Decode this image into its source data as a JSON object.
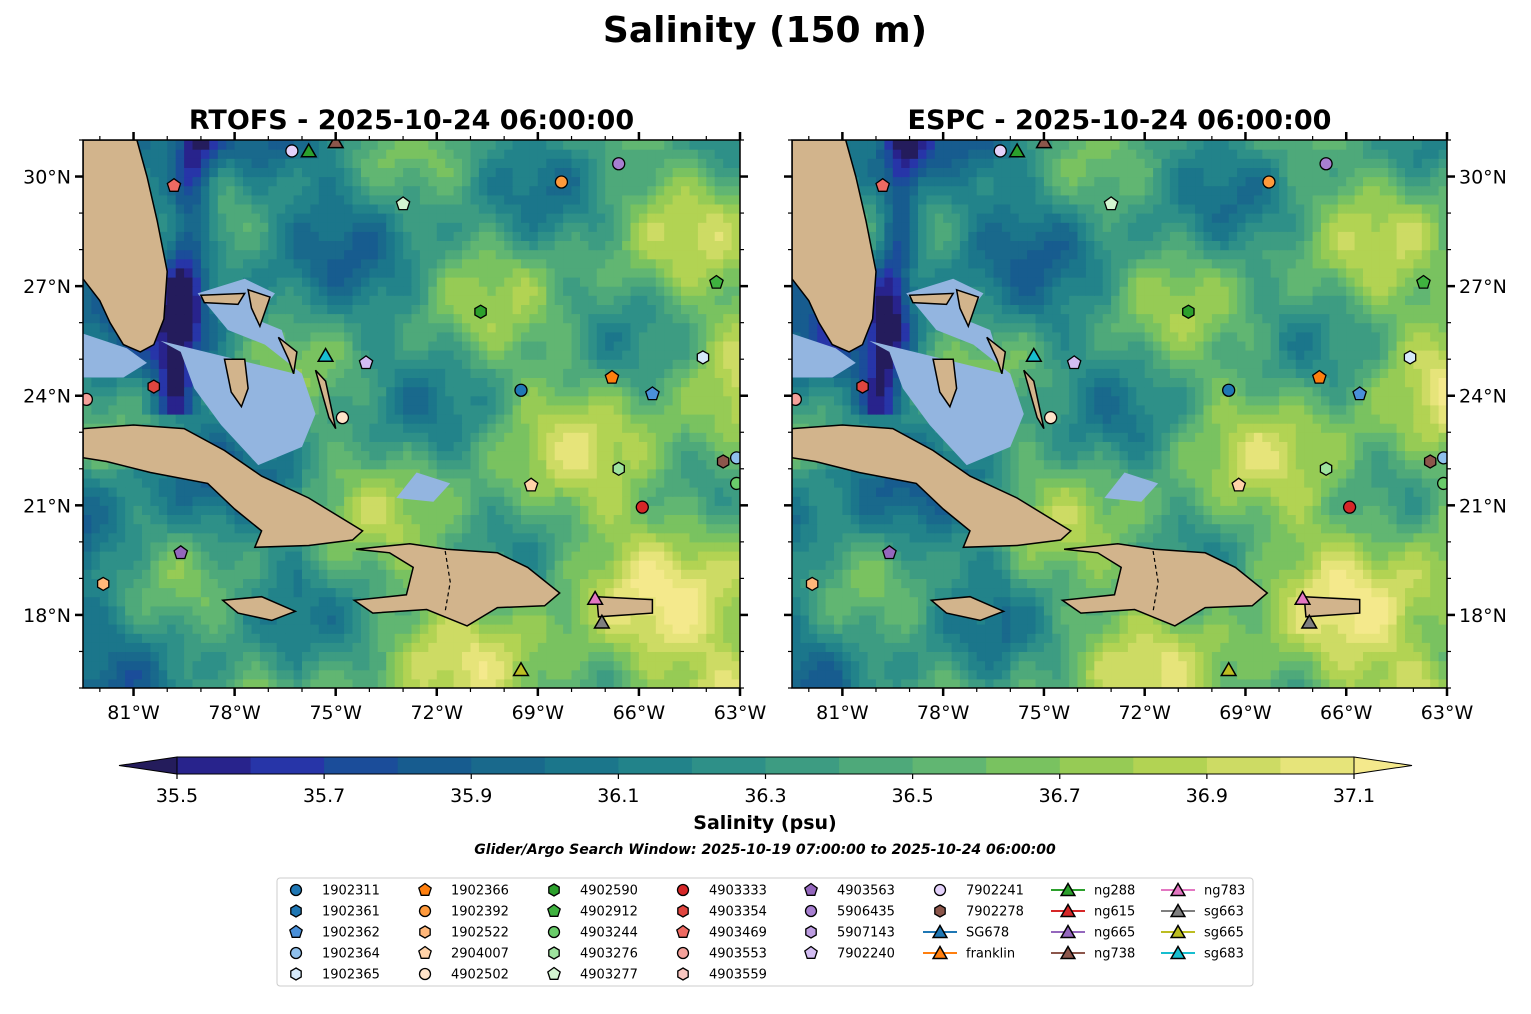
{
  "figure_title": "Salinity (150 m)",
  "colors": {
    "land": "#d2b48c",
    "shallow": "#93b5e0",
    "coast": "#000000",
    "colormap": [
      "#241c5c",
      "#28238c",
      "#2735a8",
      "#1b4d9a",
      "#175c8f",
      "#19698c",
      "#1b768b",
      "#22838a",
      "#2e9088",
      "#3d9c82",
      "#4ea97a",
      "#61b672",
      "#79c260",
      "#96cb55",
      "#b2d353",
      "#cddb64",
      "#e6e47a",
      "#f4e98c"
    ]
  },
  "chart_data": [
    {
      "type": "map",
      "title": "RTOFS - 2025-10-24 06:00:00",
      "lon_range": [
        -82.5,
        -63
      ],
      "lat_range": [
        16,
        31
      ],
      "x_ticks": [
        "81°W",
        "78°W",
        "75°W",
        "72°W",
        "69°W",
        "66°W",
        "63°W"
      ],
      "x_tick_values": [
        -81,
        -78,
        -75,
        -72,
        -69,
        -66,
        -63
      ],
      "y_ticks": [
        "18°N",
        "21°N",
        "24°N",
        "27°N",
        "30°N"
      ],
      "y_tick_values": [
        18,
        21,
        24,
        27,
        30
      ],
      "y_tick_side": "left"
    },
    {
      "type": "map",
      "title": "ESPC - 2025-10-24 06:00:00",
      "lon_range": [
        -82.5,
        -63
      ],
      "lat_range": [
        16,
        31
      ],
      "x_ticks": [
        "81°W",
        "78°W",
        "75°W",
        "72°W",
        "69°W",
        "66°W",
        "63°W"
      ],
      "x_tick_values": [
        -81,
        -78,
        -75,
        -72,
        -69,
        -66,
        -63
      ],
      "y_ticks": [
        "18°N",
        "21°N",
        "24°N",
        "27°N",
        "30°N"
      ],
      "y_tick_values": [
        18,
        21,
        24,
        27,
        30
      ],
      "y_tick_side": "right"
    }
  ],
  "colorbar": {
    "min": 35.5,
    "max": 37.1,
    "step": 0.1,
    "tick_labels": [
      "35.5",
      "35.7",
      "35.9",
      "36.1",
      "36.3",
      "36.5",
      "36.7",
      "36.9",
      "37.1"
    ],
    "label": "Salinity (psu)",
    "extend": "both"
  },
  "search_window": "Glider/Argo Search Window: 2025-10-19 07:00:00 to 2025-10-24 06:00:00",
  "legend": {
    "columns": [
      [
        {
          "id": "1902311",
          "marker": "circle",
          "color": "#1f77b4"
        },
        {
          "id": "1902361",
          "marker": "hexagon",
          "color": "#1f77b4"
        },
        {
          "id": "1902362",
          "marker": "pentagon",
          "color": "#4a90d9"
        },
        {
          "id": "1902364",
          "marker": "circle",
          "color": "#8fc0ec"
        },
        {
          "id": "1902365",
          "marker": "hexagon",
          "color": "#d6e9fa"
        }
      ],
      [
        {
          "id": "1902366",
          "marker": "pentagon",
          "color": "#ff7f0e"
        },
        {
          "id": "1902392",
          "marker": "circle",
          "color": "#ff9a3c"
        },
        {
          "id": "1902522",
          "marker": "hexagon",
          "color": "#ffb77a"
        },
        {
          "id": "2904007",
          "marker": "pentagon",
          "color": "#ffd2a8"
        },
        {
          "id": "4902502",
          "marker": "circle",
          "color": "#ffe3c9"
        }
      ],
      [
        {
          "id": "4902590",
          "marker": "hexagon",
          "color": "#2ca02c"
        },
        {
          "id": "4902912",
          "marker": "pentagon",
          "color": "#3fb23f"
        },
        {
          "id": "4903244",
          "marker": "circle",
          "color": "#6acc6a"
        },
        {
          "id": "4903276",
          "marker": "hexagon",
          "color": "#9ee39e"
        },
        {
          "id": "4903277",
          "marker": "pentagon",
          "color": "#d3f5d0"
        }
      ],
      [
        {
          "id": "4903333",
          "marker": "circle",
          "color": "#d62728"
        },
        {
          "id": "4903354",
          "marker": "hexagon",
          "color": "#e0453f"
        },
        {
          "id": "4903469",
          "marker": "pentagon",
          "color": "#ee6a62"
        },
        {
          "id": "4903553",
          "marker": "circle",
          "color": "#f4a19a"
        },
        {
          "id": "4903559",
          "marker": "hexagon",
          "color": "#f8c6c0"
        }
      ],
      [
        {
          "id": "4903563",
          "marker": "pentagon",
          "color": "#9467bd"
        },
        {
          "id": "5906435",
          "marker": "circle",
          "color": "#a77fd0"
        },
        {
          "id": "5907143",
          "marker": "hexagon",
          "color": "#bc9ce0"
        },
        {
          "id": "7902240",
          "marker": "pentagon",
          "color": "#d3bdf2"
        }
      ],
      [
        {
          "id": "7902241",
          "marker": "circle",
          "color": "#e4d2fb"
        },
        {
          "id": "7902278",
          "marker": "hexagon",
          "color": "#8c564b"
        },
        {
          "id": "SG678",
          "marker": "triangle",
          "color": "#1f77b4"
        },
        {
          "id": "franklin",
          "marker": "triangle",
          "color": "#ff7f0e"
        }
      ],
      [
        {
          "id": "ng288",
          "marker": "triangle",
          "color": "#2ca02c"
        },
        {
          "id": "ng615",
          "marker": "triangle",
          "color": "#d62728"
        },
        {
          "id": "ng665",
          "marker": "triangle",
          "color": "#9467bd"
        },
        {
          "id": "ng738",
          "marker": "triangle",
          "color": "#8c564b"
        }
      ],
      [
        {
          "id": "ng783",
          "marker": "triangle",
          "color": "#e377c2"
        },
        {
          "id": "sg663",
          "marker": "triangle",
          "color": "#7f7f7f"
        },
        {
          "id": "sg665",
          "marker": "triangle",
          "color": "#bcbd22"
        },
        {
          "id": "sg683",
          "marker": "triangle",
          "color": "#17becf"
        }
      ]
    ]
  },
  "observations": [
    {
      "id": "1902311",
      "lon": -69.5,
      "lat": 24.15
    },
    {
      "id": "1902362",
      "lon": -65.6,
      "lat": 24.05
    },
    {
      "id": "1902364",
      "lon": -63.1,
      "lat": 22.3
    },
    {
      "id": "1902365",
      "lon": -64.1,
      "lat": 25.05
    },
    {
      "id": "1902366",
      "lon": -66.8,
      "lat": 24.5
    },
    {
      "id": "1902392",
      "lon": -68.3,
      "lat": 29.85
    },
    {
      "id": "1902522",
      "lon": -81.9,
      "lat": 18.85
    },
    {
      "id": "2904007",
      "lon": -69.2,
      "lat": 21.55
    },
    {
      "id": "4902502",
      "lon": -74.8,
      "lat": 23.4
    },
    {
      "id": "4902590",
      "lon": -70.7,
      "lat": 26.3
    },
    {
      "id": "4902912",
      "lon": -63.7,
      "lat": 27.1
    },
    {
      "id": "4903244",
      "lon": -63.1,
      "lat": 21.6
    },
    {
      "id": "4903276",
      "lon": -66.6,
      "lat": 22.0
    },
    {
      "id": "4903277",
      "lon": -73.0,
      "lat": 29.25
    },
    {
      "id": "4903333",
      "lon": -65.9,
      "lat": 20.95
    },
    {
      "id": "4903354",
      "lon": -80.4,
      "lat": 24.25
    },
    {
      "id": "4903469",
      "lon": -79.8,
      "lat": 29.75
    },
    {
      "id": "4903553",
      "lon": -82.4,
      "lat": 23.9
    },
    {
      "id": "4903563",
      "lon": -79.6,
      "lat": 19.7
    },
    {
      "id": "5906435",
      "lon": -66.6,
      "lat": 30.35
    },
    {
      "id": "7902240",
      "lon": -74.1,
      "lat": 24.9
    },
    {
      "id": "7902241",
      "lon": -76.3,
      "lat": 30.7
    },
    {
      "id": "7902278",
      "lon": -63.5,
      "lat": 22.2
    },
    {
      "id": "ng288",
      "lon": -75.8,
      "lat": 30.7
    },
    {
      "id": "ng738",
      "lon": -75.0,
      "lat": 30.95
    },
    {
      "id": "sg683",
      "lon": -75.3,
      "lat": 25.1
    },
    {
      "id": "ng783",
      "lon": -67.3,
      "lat": 18.45
    },
    {
      "id": "sg663",
      "lon": -67.1,
      "lat": 17.8
    },
    {
      "id": "sg665",
      "lon": -69.5,
      "lat": 16.5
    }
  ]
}
